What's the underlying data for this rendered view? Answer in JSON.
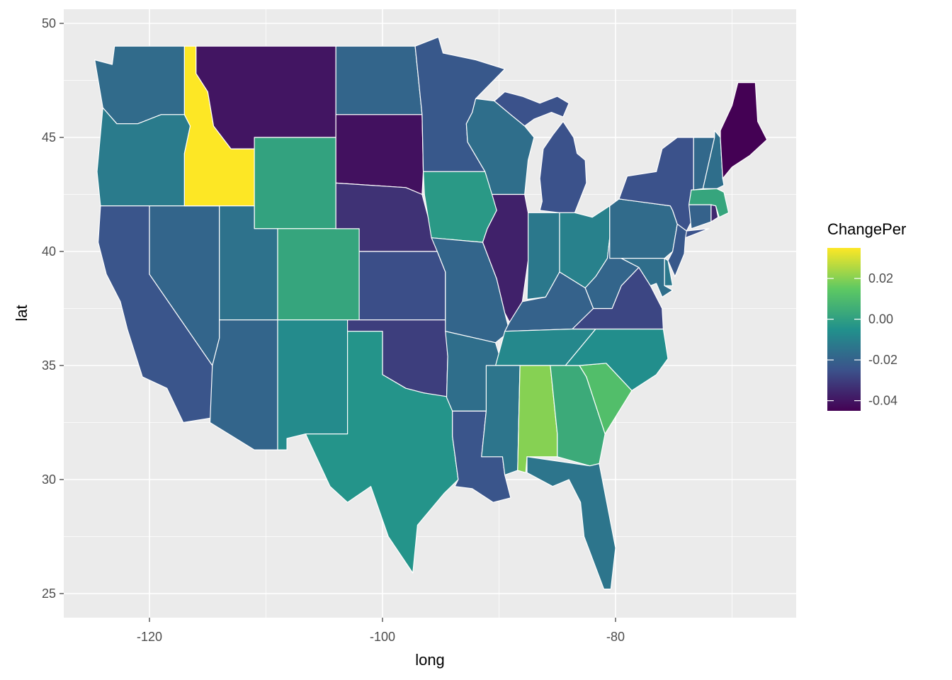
{
  "chart_data": {
    "type": "choropleth",
    "x_axis": {
      "label": "long",
      "ticks": [
        "-120",
        "-100",
        "-80"
      ]
    },
    "y_axis": {
      "label": "lat",
      "ticks": [
        "25",
        "30",
        "35",
        "40",
        "45",
        "50"
      ]
    },
    "legend": {
      "title": "ChangePer",
      "position": "right",
      "labels": [
        "0.02",
        "0.00",
        "-0.02",
        "-0.04"
      ],
      "range": [
        -0.045,
        0.035
      ],
      "palette": [
        "#440154",
        "#3b528b",
        "#21918c",
        "#5ec962",
        "#fde725"
      ]
    },
    "grid": true,
    "panel_background": "#ebebeb",
    "regions": [
      {
        "name": "Washington",
        "value": -0.017
      },
      {
        "name": "Oregon",
        "value": -0.012
      },
      {
        "name": "California",
        "value": -0.024
      },
      {
        "name": "Nevada",
        "value": -0.019
      },
      {
        "name": "Idaho",
        "value": 0.035
      },
      {
        "name": "Montana",
        "value": -0.04
      },
      {
        "name": "Wyoming",
        "value": 0.001
      },
      {
        "name": "Utah",
        "value": -0.015
      },
      {
        "name": "Colorado",
        "value": 0.002
      },
      {
        "name": "Arizona",
        "value": -0.019
      },
      {
        "name": "New Mexico",
        "value": -0.007
      },
      {
        "name": "North Dakota",
        "value": -0.019
      },
      {
        "name": "South Dakota",
        "value": -0.041
      },
      {
        "name": "Nebraska",
        "value": -0.033
      },
      {
        "name": "Kansas",
        "value": -0.026
      },
      {
        "name": "Oklahoma",
        "value": -0.03
      },
      {
        "name": "Texas",
        "value": -0.004
      },
      {
        "name": "Minnesota",
        "value": -0.023
      },
      {
        "name": "Iowa",
        "value": -0.002
      },
      {
        "name": "Missouri",
        "value": -0.019
      },
      {
        "name": "Arkansas",
        "value": -0.016
      },
      {
        "name": "Louisiana",
        "value": -0.024
      },
      {
        "name": "Wisconsin",
        "value": -0.016
      },
      {
        "name": "Illinois",
        "value": -0.037
      },
      {
        "name": "Michigan",
        "value": -0.025
      },
      {
        "name": "Indiana",
        "value": -0.013
      },
      {
        "name": "Ohio",
        "value": -0.01
      },
      {
        "name": "Kentucky",
        "value": -0.02
      },
      {
        "name": "Tennessee",
        "value": -0.008
      },
      {
        "name": "Mississippi",
        "value": -0.014
      },
      {
        "name": "Alabama",
        "value": 0.02
      },
      {
        "name": "Georgia",
        "value": 0.004
      },
      {
        "name": "Florida",
        "value": -0.014
      },
      {
        "name": "South Carolina",
        "value": 0.011
      },
      {
        "name": "North Carolina",
        "value": -0.006
      },
      {
        "name": "Virginia",
        "value": -0.028
      },
      {
        "name": "West Virginia",
        "value": -0.019
      },
      {
        "name": "Pennsylvania",
        "value": -0.017
      },
      {
        "name": "New York",
        "value": -0.025
      },
      {
        "name": "New Jersey",
        "value": -0.023
      },
      {
        "name": "Delaware",
        "value": -0.013
      },
      {
        "name": "Maryland",
        "value": -0.016
      },
      {
        "name": "Connecticut",
        "value": -0.02
      },
      {
        "name": "Rhode Island",
        "value": -0.035
      },
      {
        "name": "Massachusetts",
        "value": 0.002
      },
      {
        "name": "Vermont",
        "value": -0.018
      },
      {
        "name": "New Hampshire",
        "value": -0.016
      },
      {
        "name": "Maine",
        "value": -0.045
      }
    ]
  }
}
